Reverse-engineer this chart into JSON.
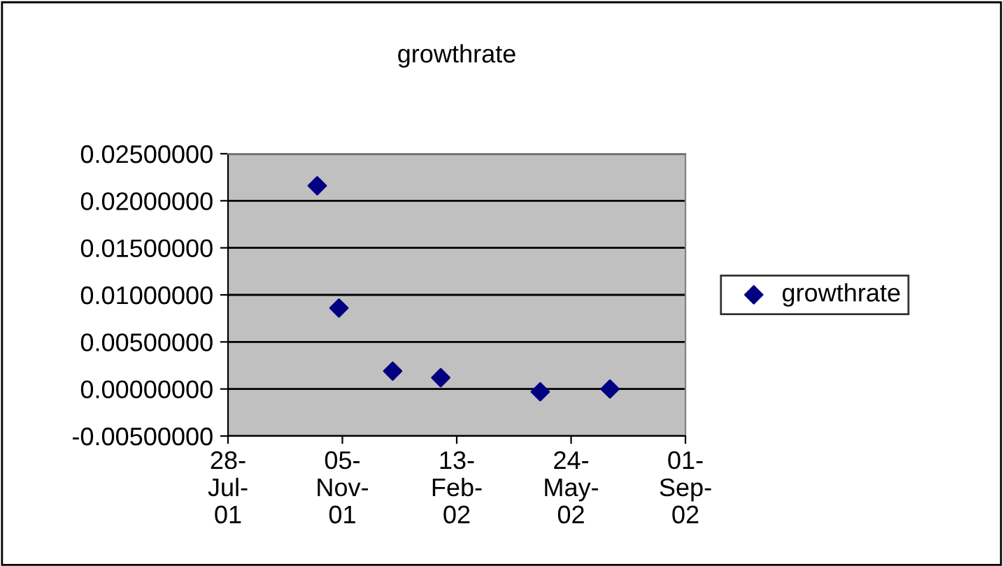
{
  "chart_data": {
    "type": "scatter",
    "title": "growthrate",
    "x": [
      "2001-10-14",
      "2001-11-02",
      "2001-12-19",
      "2002-01-30",
      "2002-04-27",
      "2002-06-27"
    ],
    "series": [
      {
        "name": "growthrate",
        "color": "#000080",
        "values": [
          0.0216,
          0.0086,
          0.0019,
          0.0012,
          -0.0003,
          0.0
        ]
      }
    ],
    "xlim": [
      "2001-07-28",
      "2002-09-01"
    ],
    "xticks": [
      {
        "value": "2001-07-28",
        "label": "28-\nJul-\n01"
      },
      {
        "value": "2001-11-05",
        "label": "05-\nNov-\n01"
      },
      {
        "value": "2002-02-13",
        "label": "13-\nFeb-\n02"
      },
      {
        "value": "2002-05-24",
        "label": "24-\nMay-\n02"
      },
      {
        "value": "2002-09-01",
        "label": "01-\nSep-\n02"
      }
    ],
    "ylim": [
      -0.005,
      0.025
    ],
    "yticks": [
      {
        "value": -0.005,
        "label": "-0.00500000"
      },
      {
        "value": 0,
        "label": "0.00000000"
      },
      {
        "value": 0.005,
        "label": "0.00500000"
      },
      {
        "value": 0.01,
        "label": "0.01000000"
      },
      {
        "value": 0.015,
        "label": "0.01500000"
      },
      {
        "value": 0.02,
        "label": "0.02000000"
      },
      {
        "value": 0.025,
        "label": "0.02500000"
      }
    ],
    "grid": "y",
    "legend": "right",
    "marker": "diamond"
  }
}
